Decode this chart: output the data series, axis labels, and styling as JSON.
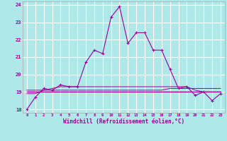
{
  "xlabel": "Windchill (Refroidissement éolien,°C)",
  "bg_color": "#aee8e8",
  "grid_color": "#ffffff",
  "line_color": "#990099",
  "xlim": [
    -0.5,
    23.5
  ],
  "ylim": [
    17.8,
    24.2
  ],
  "yticks": [
    18,
    19,
    20,
    21,
    22,
    23,
    24
  ],
  "xticks": [
    0,
    1,
    2,
    3,
    4,
    5,
    6,
    7,
    8,
    9,
    10,
    11,
    12,
    13,
    14,
    15,
    16,
    17,
    18,
    19,
    20,
    21,
    22,
    23
  ],
  "hours": [
    0,
    1,
    2,
    3,
    4,
    5,
    6,
    7,
    8,
    9,
    10,
    11,
    12,
    13,
    14,
    15,
    16,
    17,
    18,
    19,
    20,
    21,
    22,
    23
  ],
  "temp": [
    18.0,
    18.7,
    19.2,
    19.1,
    19.4,
    19.3,
    19.3,
    20.7,
    21.4,
    21.2,
    23.3,
    23.9,
    21.8,
    22.4,
    22.4,
    21.4,
    21.4,
    20.3,
    19.2,
    19.3,
    18.8,
    19.0,
    18.5,
    18.9
  ],
  "line2": [
    19.0,
    19.0,
    19.0,
    19.0,
    19.0,
    19.0,
    19.0,
    19.0,
    19.0,
    19.0,
    19.0,
    19.0,
    19.0,
    19.0,
    19.0,
    19.0,
    19.0,
    19.0,
    19.0,
    19.0,
    19.0,
    19.0,
    19.0,
    19.0
  ],
  "line3": [
    19.1,
    19.1,
    19.1,
    19.1,
    19.1,
    19.1,
    19.1,
    19.1,
    19.1,
    19.1,
    19.1,
    19.1,
    19.1,
    19.1,
    19.1,
    19.1,
    19.1,
    19.2,
    19.2,
    19.2,
    19.2,
    19.2,
    19.2,
    19.2
  ],
  "line4": [
    18.9,
    18.9,
    19.1,
    19.2,
    19.3,
    19.3,
    19.3,
    19.3,
    19.3,
    19.3,
    19.3,
    19.3,
    19.3,
    19.3,
    19.3,
    19.3,
    19.3,
    19.3,
    19.3,
    19.3,
    19.1,
    19.0,
    19.0,
    19.0
  ]
}
